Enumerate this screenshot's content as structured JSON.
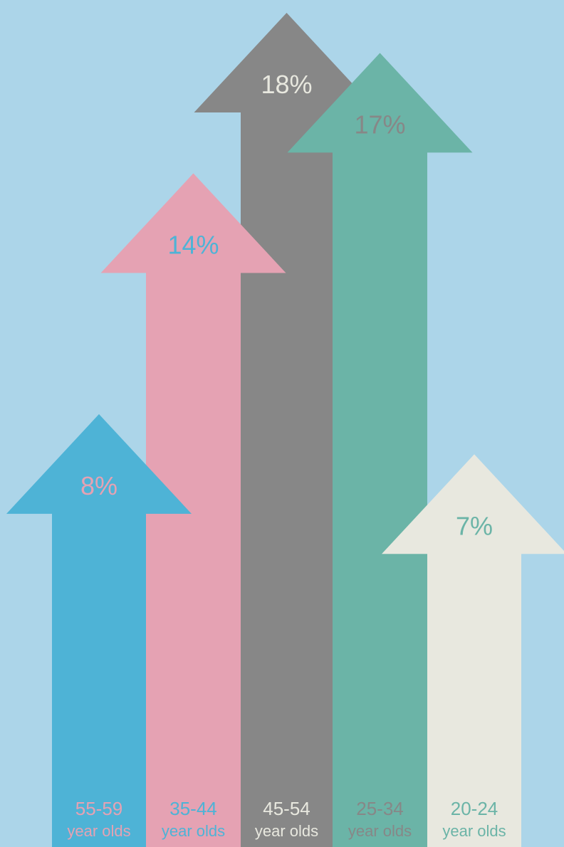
{
  "chart_data": {
    "type": "bar",
    "title": "",
    "xlabel": "",
    "ylabel": "",
    "ylim": [
      0,
      18
    ],
    "categories": [
      "55-59",
      "35-44",
      "45-54",
      "25-34",
      "20-24"
    ],
    "category_suffix": "year olds",
    "values": [
      8,
      14,
      18,
      17,
      7
    ],
    "value_labels": [
      "8%",
      "14%",
      "18%",
      "17%",
      "7%"
    ],
    "colors": [
      "#4eb3d6",
      "#e5a2b3",
      "#878787",
      "#6bb4a7",
      "#e8e8df"
    ],
    "label_colors": [
      "#e5a2b3",
      "#4eb3d6",
      "#e8e8df",
      "#878787",
      "#6bb4a7"
    ],
    "background": "#acd5e9"
  }
}
